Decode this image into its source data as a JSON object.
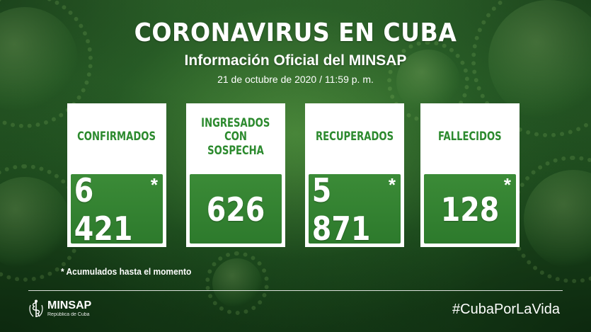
{
  "header": {
    "title": "CORONAVIRUS EN CUBA",
    "subtitle": "Información Oficial del MINSAP",
    "datetime": "21 de octubre de 2020 / 11:59 p. m."
  },
  "cards": [
    {
      "label_line1": "CONFIRMADOS",
      "label_line2": "",
      "value": "6 421",
      "asterisk": "*"
    },
    {
      "label_line1": "INGRESADOS",
      "label_line2": "CON SOSPECHA",
      "value": "626",
      "asterisk": ""
    },
    {
      "label_line1": "RECUPERADOS",
      "label_line2": "",
      "value": "5 871",
      "asterisk": "*"
    },
    {
      "label_line1": "FALLECIDOS",
      "label_line2": "",
      "value": "128",
      "asterisk": "*"
    }
  ],
  "footer": {
    "note": "* Acumulados hasta el momento",
    "logo_name": "MINSAP",
    "logo_sub": "República de Cuba",
    "hashtag": "#CubaPorLaVida"
  },
  "colors": {
    "background": "#2f6b2c",
    "label_green": "#2c8a2e",
    "value_panel": "#3b8b37",
    "text": "#ffffff"
  }
}
